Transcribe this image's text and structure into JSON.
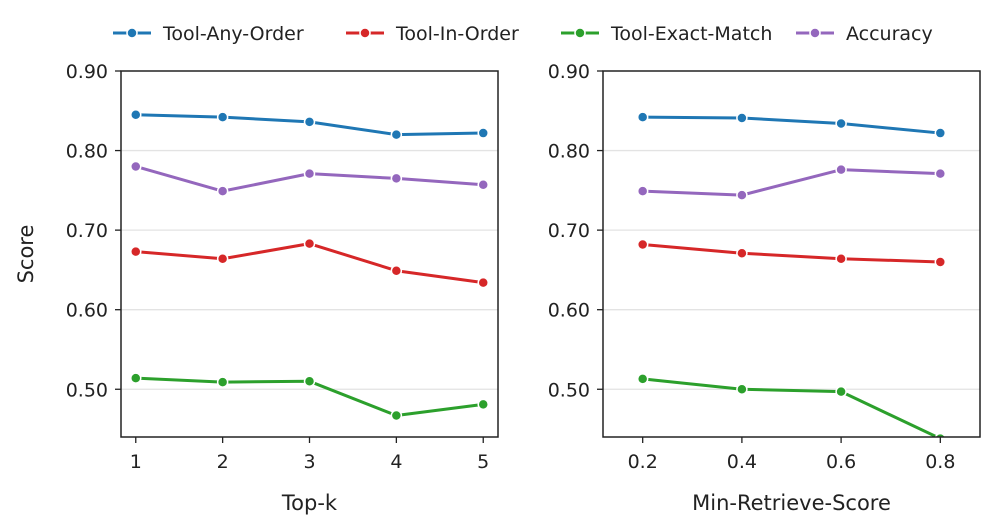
{
  "chart_data": [
    {
      "type": "line",
      "xlabel": "Top-k",
      "ylabel": "Score",
      "x": [
        1,
        2,
        3,
        4,
        5
      ],
      "x_tick_labels": [
        "1",
        "2",
        "3",
        "4",
        "5"
      ],
      "xlim": [
        0.83,
        5.17
      ],
      "ylim": [
        0.44,
        0.9
      ],
      "y_ticks": [
        0.5,
        0.6,
        0.7,
        0.8,
        0.9
      ],
      "y_tick_labels": [
        "0.50",
        "0.60",
        "0.70",
        "0.80",
        "0.90"
      ],
      "grid": "horizontal",
      "series": [
        {
          "name": "Tool-Any-Order",
          "values": [
            0.845,
            0.842,
            0.836,
            0.82,
            0.822
          ]
        },
        {
          "name": "Tool-In-Order",
          "values": [
            0.673,
            0.664,
            0.683,
            0.649,
            0.634
          ]
        },
        {
          "name": "Tool-Exact-Match",
          "values": [
            0.514,
            0.509,
            0.51,
            0.467,
            0.481
          ]
        },
        {
          "name": "Accuracy",
          "values": [
            0.78,
            0.749,
            0.771,
            0.765,
            0.757
          ]
        }
      ]
    },
    {
      "type": "line",
      "xlabel": "Min-Retrieve-Score",
      "ylabel": "",
      "x": [
        0.2,
        0.4,
        0.6,
        0.8
      ],
      "x_tick_labels": [
        "0.2",
        "0.4",
        "0.6",
        "0.8"
      ],
      "xlim": [
        0.12,
        0.88
      ],
      "ylim": [
        0.44,
        0.9
      ],
      "y_ticks": [
        0.5,
        0.6,
        0.7,
        0.8,
        0.9
      ],
      "y_tick_labels": [
        "0.50",
        "0.60",
        "0.70",
        "0.80",
        "0.90"
      ],
      "grid": "horizontal",
      "series": [
        {
          "name": "Tool-Any-Order",
          "values": [
            0.842,
            0.841,
            0.834,
            0.822
          ]
        },
        {
          "name": "Tool-In-Order",
          "values": [
            0.682,
            0.671,
            0.664,
            0.66
          ]
        },
        {
          "name": "Tool-Exact-Match",
          "values": [
            0.513,
            0.5,
            0.497,
            0.438
          ]
        },
        {
          "name": "Accuracy",
          "values": [
            0.749,
            0.744,
            0.776,
            0.771
          ]
        }
      ]
    }
  ],
  "legend": {
    "placement": "top-center",
    "items": [
      {
        "label": "Tool-Any-Order",
        "color": "#1f77b4"
      },
      {
        "label": "Tool-In-Order",
        "color": "#d62728"
      },
      {
        "label": "Tool-Exact-Match",
        "color": "#2ca02c"
      },
      {
        "label": "Accuracy",
        "color": "#9467bd"
      }
    ]
  }
}
